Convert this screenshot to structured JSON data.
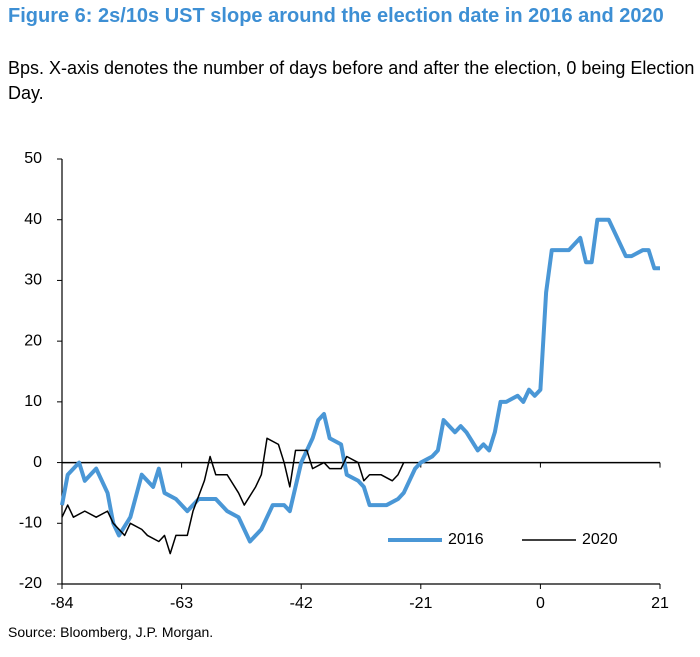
{
  "chart_data": {
    "type": "line",
    "title": "Figure 6: 2s/10s UST slope around the election date in 2016 and 2020",
    "subtitle": "Bps. X-axis denotes the number of days before and after the election, 0 being Election Day.",
    "source": "Source: Bloomberg, J.P. Morgan.",
    "xlim": [
      -84,
      21
    ],
    "xticks": [
      -84,
      -63,
      -42,
      -21,
      0,
      21
    ],
    "ylim": [
      -20,
      50
    ],
    "yticks": [
      -20,
      -10,
      0,
      10,
      20,
      30,
      40,
      50
    ],
    "zero_line": true,
    "legend": "lower right",
    "series": [
      {
        "name": "2016",
        "color": "#4a97d6",
        "width": 4,
        "x": [
          -84,
          -83,
          -81,
          -80,
          -78,
          -76,
          -75,
          -74,
          -72,
          -70,
          -68,
          -67,
          -66,
          -64,
          -62,
          -60,
          -59,
          -57,
          -55,
          -53,
          -51,
          -49,
          -47,
          -45,
          -44,
          -42,
          -40,
          -39,
          -38,
          -37,
          -35,
          -34,
          -32,
          -31,
          -30,
          -27,
          -25,
          -24,
          -22,
          -21,
          -19,
          -18,
          -17,
          -15,
          -14,
          -13,
          -11,
          -10,
          -9,
          -8,
          -7,
          -6,
          -4,
          -3,
          -2,
          -1,
          0,
          1,
          2,
          3,
          5,
          7,
          8,
          9,
          10,
          12,
          14,
          15,
          16,
          18,
          19,
          20,
          21
        ],
        "values": [
          -7,
          -2,
          0,
          -3,
          -1,
          -5,
          -10,
          -12,
          -9,
          -2,
          -4,
          -1,
          -5,
          -6,
          -8,
          -6,
          -6,
          -6,
          -8,
          -9,
          -13,
          -11,
          -7,
          -7,
          -8,
          0,
          4,
          7,
          8,
          4,
          3,
          -2,
          -3,
          -4,
          -7,
          -7,
          -6,
          -5,
          -1,
          0,
          1,
          2,
          7,
          5,
          6,
          5,
          2,
          3,
          2,
          5,
          10,
          10,
          11,
          10,
          12,
          11,
          12,
          28,
          35,
          35,
          35,
          37,
          33,
          33,
          40,
          40,
          36,
          34,
          34,
          35,
          35,
          32,
          32
        ]
      },
      {
        "name": "2020",
        "color": "#000000",
        "width": 1.5,
        "x": [
          -84,
          -83,
          -82,
          -80,
          -78,
          -76,
          -75,
          -73,
          -72,
          -70,
          -69,
          -67,
          -66,
          -65,
          -64,
          -62,
          -61,
          -59,
          -58,
          -57,
          -55,
          -53,
          -52,
          -50,
          -49,
          -48,
          -46,
          -45,
          -44,
          -43,
          -41,
          -40,
          -38,
          -37,
          -35,
          -34,
          -32,
          -31,
          -30,
          -28,
          -26,
          -25,
          -24
        ],
        "values": [
          -9,
          -7,
          -9,
          -8,
          -9,
          -8,
          -10,
          -12,
          -10,
          -11,
          -12,
          -13,
          -12,
          -15,
          -12,
          -12,
          -8,
          -3,
          1,
          -2,
          -2,
          -5,
          -7,
          -4,
          -2,
          4,
          3,
          0,
          -4,
          2,
          2,
          -1,
          0,
          -1,
          -1,
          1,
          0,
          -3,
          -2,
          -2,
          -3,
          -2,
          0
        ]
      }
    ]
  }
}
